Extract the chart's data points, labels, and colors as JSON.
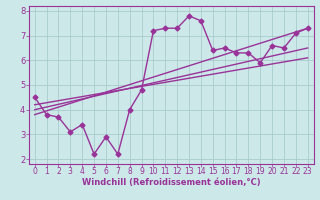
{
  "bg_color": "#cce8e8",
  "grid_color": "#aacccc",
  "line_color": "#993399",
  "xlabel": "Windchill (Refroidissement éolien,°C)",
  "xlim": [
    -0.5,
    23.5
  ],
  "ylim": [
    1.8,
    8.2
  ],
  "yticks": [
    2,
    3,
    4,
    5,
    6,
    7,
    8
  ],
  "xticks": [
    0,
    1,
    2,
    3,
    4,
    5,
    6,
    7,
    8,
    9,
    10,
    11,
    12,
    13,
    14,
    15,
    16,
    17,
    18,
    19,
    20,
    21,
    22,
    23
  ],
  "series1_x": [
    0,
    1,
    2,
    3,
    4,
    5,
    6,
    7,
    8,
    9,
    10,
    11,
    12,
    13,
    14,
    15,
    16,
    17,
    18,
    19,
    20,
    21,
    22,
    23
  ],
  "series1_y": [
    4.5,
    3.8,
    3.7,
    3.1,
    3.4,
    2.2,
    2.9,
    2.2,
    4.0,
    4.8,
    7.2,
    7.3,
    7.3,
    7.8,
    7.6,
    6.4,
    6.5,
    6.3,
    6.3,
    5.9,
    6.6,
    6.5,
    7.1,
    7.3
  ],
  "series2_x": [
    0,
    23
  ],
  "series2_y": [
    4.2,
    6.1
  ],
  "series3_x": [
    0,
    23
  ],
  "series3_y": [
    4.0,
    6.5
  ],
  "series4_x": [
    0,
    23
  ],
  "series4_y": [
    3.8,
    7.3
  ],
  "marker": "D",
  "markersize": 2.5,
  "linewidth": 1.0,
  "tick_fontsize": 5.5,
  "xlabel_fontsize": 6.0
}
